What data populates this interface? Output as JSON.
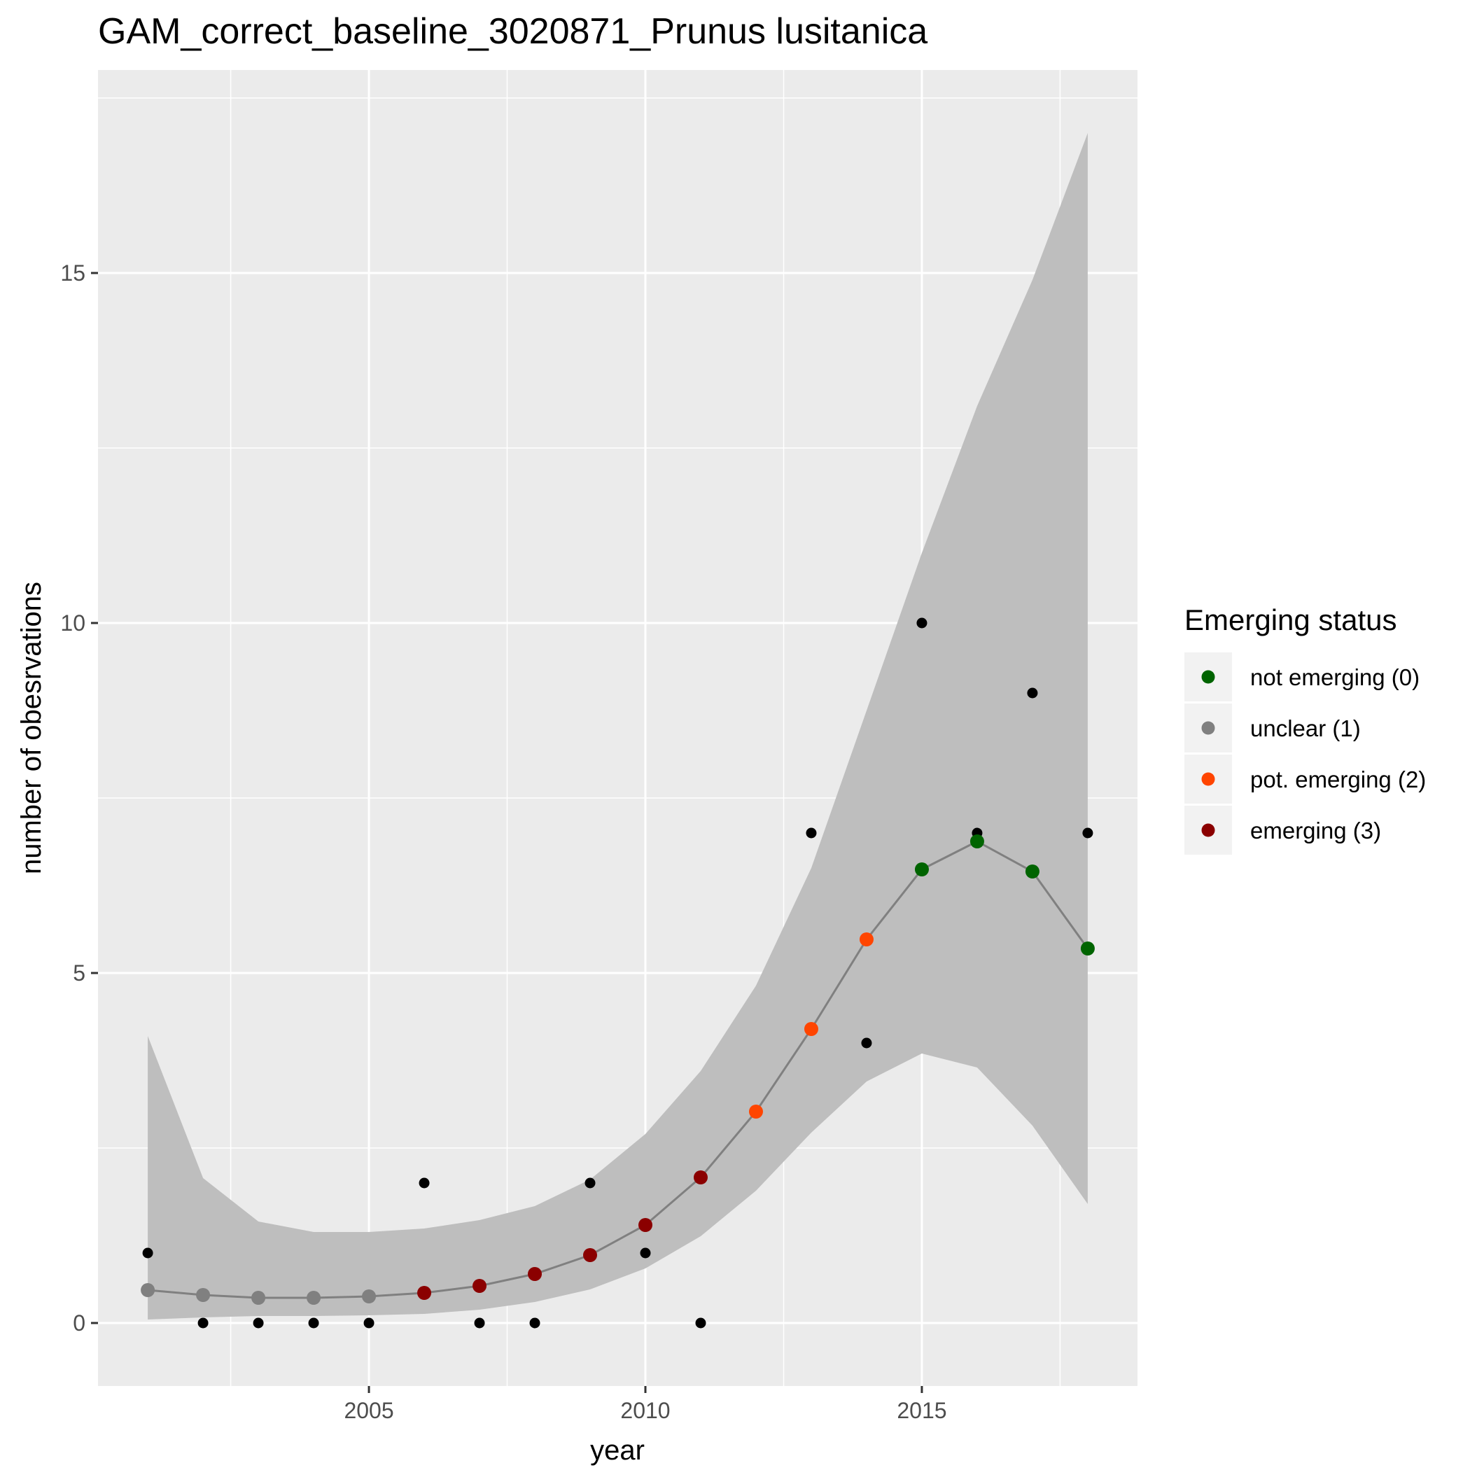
{
  "chart_data": {
    "type": "line",
    "title": "GAM_correct_baseline_3020871_Prunus lusitanica",
    "xlabel": "year",
    "ylabel": "number of obesrvations",
    "xlim": [
      2000.1,
      2018.9
    ],
    "ylim": [
      -0.9,
      17.9
    ],
    "x_ticks": [
      2005,
      2010,
      2015
    ],
    "x_tick_labels": [
      "2005",
      "2010",
      "2015"
    ],
    "y_ticks": [
      0,
      5,
      10,
      15
    ],
    "y_tick_labels": [
      "0",
      "5",
      "10",
      "15"
    ],
    "grid": true,
    "observed": {
      "x": [
        2001,
        2002,
        2003,
        2004,
        2005,
        2006,
        2007,
        2008,
        2009,
        2010,
        2011,
        2013,
        2014,
        2015,
        2016,
        2017,
        2018
      ],
      "y": [
        1,
        0,
        0,
        0,
        0,
        2,
        0,
        0,
        2,
        1,
        0,
        7,
        4,
        10,
        7,
        9,
        7
      ],
      "color": "#000000"
    },
    "fit": {
      "x": [
        2001,
        2002,
        2003,
        2004,
        2005,
        2006,
        2007,
        2008,
        2009,
        2010,
        2011,
        2012,
        2013,
        2014,
        2015,
        2016,
        2017,
        2018
      ],
      "y": [
        0.47,
        0.4,
        0.36,
        0.36,
        0.38,
        0.43,
        0.53,
        0.7,
        0.97,
        1.4,
        2.08,
        3.02,
        4.2,
        5.48,
        6.48,
        6.88,
        6.45,
        5.35
      ],
      "lower": [
        0.05,
        0.08,
        0.1,
        0.1,
        0.11,
        0.13,
        0.19,
        0.3,
        0.48,
        0.78,
        1.24,
        1.89,
        2.72,
        3.45,
        3.85,
        3.65,
        2.82,
        1.7
      ],
      "upper": [
        4.1,
        2.07,
        1.45,
        1.3,
        1.3,
        1.35,
        1.47,
        1.67,
        2.05,
        2.7,
        3.6,
        4.82,
        6.5,
        8.75,
        11.0,
        13.1,
        14.9,
        17.0
      ],
      "status": [
        1,
        1,
        1,
        1,
        1,
        3,
        3,
        3,
        3,
        3,
        3,
        2,
        2,
        2,
        0,
        0,
        0,
        0
      ],
      "line_color": "#808080",
      "ribbon_color": "#bebebe"
    },
    "legend": {
      "title": "Emerging status",
      "placement": "right",
      "items": [
        {
          "status": 0,
          "label": "not emerging (0)",
          "color": "#006400"
        },
        {
          "status": 1,
          "label": "unclear (1)",
          "color": "#808080"
        },
        {
          "status": 2,
          "label": "pot. emerging (2)",
          "color": "#ff4500"
        },
        {
          "status": 3,
          "label": "emerging (3)",
          "color": "#8b0000"
        }
      ]
    },
    "panel_color": "#ebebeb",
    "grid_color": "#ffffff"
  }
}
